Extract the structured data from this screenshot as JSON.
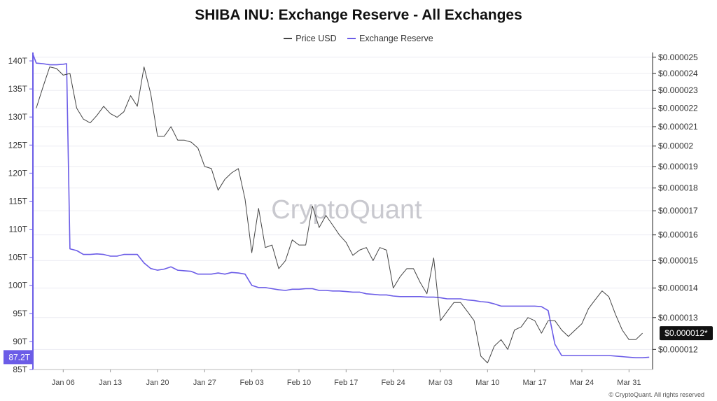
{
  "chart_data": {
    "type": "line",
    "title": "SHIBA INU: Exchange Reserve - All Exchanges",
    "legend": [
      {
        "name": "Price USD",
        "color": "#444444"
      },
      {
        "name": "Exchange Reserve",
        "color": "#6b5ce7"
      }
    ],
    "watermark": "CryptoQuant",
    "credit": "© CryptoQuant. All rights reserved",
    "x_tick_labels": [
      "Jan 06",
      "Jan 13",
      "Jan 20",
      "Jan 27",
      "Feb 03",
      "Feb 10",
      "Feb 17",
      "Feb 24",
      "Mar 03",
      "Mar 10",
      "Mar 17",
      "Mar 24",
      "Mar 31"
    ],
    "x_tick_days": [
      6,
      13,
      20,
      27,
      34,
      41,
      48,
      55,
      62,
      69,
      76,
      83,
      90
    ],
    "x_range_days": [
      1.5,
      93.5
    ],
    "left_axis": {
      "label_values": [
        85,
        90,
        95,
        100,
        105,
        110,
        115,
        120,
        125,
        130,
        135,
        140
      ],
      "labels": [
        "85T",
        "90T",
        "95T",
        "100T",
        "105T",
        "110T",
        "115T",
        "120T",
        "125T",
        "130T",
        "135T",
        "140T"
      ],
      "range": [
        85,
        141.5
      ],
      "current_label": "87.2T"
    },
    "right_axis": {
      "scale": "log",
      "label_values": [
        1.2e-05,
        1.3e-05,
        1.4e-05,
        1.5e-05,
        1.6e-05,
        1.7e-05,
        1.8e-05,
        1.9e-05,
        2e-05,
        2.1e-05,
        2.2e-05,
        2.3e-05,
        2.4e-05,
        2.5e-05
      ],
      "labels": [
        "$0.000012",
        "$0.000013",
        "$0.000014",
        "$0.000015",
        "$0.000016",
        "$0.000017",
        "$0.000018",
        "$0.000019",
        "$0.00002",
        "$0.000021",
        "$0.000022",
        "$0.000023",
        "$0.000024",
        "$0.000025"
      ],
      "range": [
        1.141e-05,
        2.53e-05
      ],
      "current_label": "$0.000012*"
    },
    "series": [
      {
        "name": "Exchange Reserve",
        "unit": "T",
        "axis": "left",
        "x": [
          1.5,
          2,
          3,
          4,
          5,
          6,
          6.5,
          7,
          8,
          9,
          10,
          11,
          12,
          13,
          14,
          15,
          16,
          17,
          18,
          19,
          20,
          21,
          22,
          23,
          24,
          25,
          26,
          27,
          28,
          29,
          30,
          31,
          32,
          33,
          34,
          35,
          36,
          37,
          38,
          39,
          40,
          41,
          42,
          43,
          44,
          45,
          46,
          47,
          48,
          49,
          50,
          51,
          52,
          53,
          54,
          55,
          56,
          57,
          58,
          59,
          60,
          61,
          62,
          63,
          64,
          65,
          66,
          67,
          68,
          69,
          70,
          71,
          72,
          73,
          74,
          75,
          76,
          77,
          78,
          79,
          80,
          81,
          82,
          83,
          84,
          85,
          86,
          87,
          88,
          89,
          90,
          91,
          92,
          93
        ],
        "values": [
          141.2,
          139.6,
          139.5,
          139.3,
          139.3,
          139.4,
          139.5,
          106.5,
          106.2,
          105.5,
          105.5,
          105.6,
          105.5,
          105.2,
          105.2,
          105.5,
          105.5,
          105.5,
          104.0,
          103.0,
          102.7,
          102.9,
          103.3,
          102.7,
          102.6,
          102.5,
          102.0,
          102.0,
          102.0,
          102.2,
          102.0,
          102.3,
          102.2,
          102.0,
          100.0,
          99.6,
          99.6,
          99.4,
          99.2,
          99.1,
          99.3,
          99.3,
          99.4,
          99.4,
          99.1,
          99.1,
          99.0,
          99.0,
          98.9,
          98.8,
          98.8,
          98.5,
          98.4,
          98.3,
          98.3,
          98.1,
          98.0,
          98.0,
          98.0,
          98.0,
          97.9,
          97.9,
          97.8,
          97.6,
          97.6,
          97.6,
          97.4,
          97.3,
          97.1,
          97.0,
          96.7,
          96.3,
          96.3,
          96.3,
          96.3,
          96.3,
          96.3,
          96.2,
          95.5,
          89.5,
          87.5,
          87.5,
          87.5,
          87.5,
          87.5,
          87.5,
          87.5,
          87.5,
          87.4,
          87.3,
          87.2,
          87.1,
          87.1,
          87.2
        ]
      },
      {
        "name": "Price USD",
        "unit": "USD",
        "axis": "right",
        "x": [
          2,
          3,
          4,
          5,
          6,
          7,
          8,
          9,
          10,
          11,
          12,
          13,
          14,
          15,
          16,
          17,
          18,
          19,
          20,
          21,
          22,
          23,
          24,
          25,
          26,
          27,
          28,
          29,
          30,
          31,
          32,
          33,
          34,
          35,
          36,
          37,
          38,
          39,
          40,
          41,
          42,
          43,
          44,
          45,
          46,
          47,
          48,
          49,
          50,
          51,
          52,
          53,
          54,
          55,
          56,
          57,
          58,
          59,
          60,
          61,
          62,
          63,
          64,
          65,
          66,
          67,
          68,
          69,
          70,
          71,
          72,
          73,
          74,
          75,
          76,
          77,
          78,
          79,
          80,
          81,
          82,
          83,
          84,
          85,
          86,
          87,
          88,
          89,
          90,
          91,
          92
        ],
        "values": [
          2.2e-05,
          2.32e-05,
          2.44e-05,
          2.43e-05,
          2.39e-05,
          2.4e-05,
          2.2e-05,
          2.14e-05,
          2.12e-05,
          2.16e-05,
          2.21e-05,
          2.17e-05,
          2.15e-05,
          2.18e-05,
          2.27e-05,
          2.21e-05,
          2.44e-05,
          2.28e-05,
          2.05e-05,
          2.05e-05,
          2.1e-05,
          2.03e-05,
          2.03e-05,
          2.02e-05,
          1.99e-05,
          1.9e-05,
          1.89e-05,
          1.79e-05,
          1.84e-05,
          1.87e-05,
          1.89e-05,
          1.75e-05,
          1.53e-05,
          1.71e-05,
          1.55e-05,
          1.56e-05,
          1.47e-05,
          1.5e-05,
          1.58e-05,
          1.56e-05,
          1.56e-05,
          1.72e-05,
          1.63e-05,
          1.68e-05,
          1.64e-05,
          1.6e-05,
          1.57e-05,
          1.52e-05,
          1.54e-05,
          1.55e-05,
          1.5e-05,
          1.55e-05,
          1.54e-05,
          1.4e-05,
          1.44e-05,
          1.47e-05,
          1.47e-05,
          1.42e-05,
          1.38e-05,
          1.51e-05,
          1.29e-05,
          1.32e-05,
          1.35e-05,
          1.35e-05,
          1.32e-05,
          1.29e-05,
          1.18e-05,
          1.16e-05,
          1.21e-05,
          1.23e-05,
          1.2e-05,
          1.26e-05,
          1.27e-05,
          1.3e-05,
          1.29e-05,
          1.25e-05,
          1.29e-05,
          1.29e-05,
          1.26e-05,
          1.24e-05,
          1.26e-05,
          1.28e-05,
          1.33e-05,
          1.36e-05,
          1.39e-05,
          1.37e-05,
          1.31e-05,
          1.26e-05,
          1.23e-05,
          1.23e-05,
          1.25e-05
        ]
      }
    ]
  }
}
